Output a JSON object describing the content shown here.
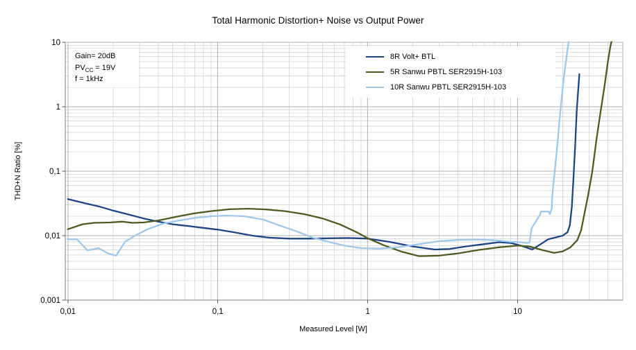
{
  "chart_data": {
    "type": "line",
    "title": "Total Harmonic Distortion+ Noise vs Output Power",
    "xlabel": "Measured Level [W]",
    "ylabel": "THD+N Ratio [%]",
    "x_scale": "log",
    "y_scale": "log",
    "xlim": [
      0.01,
      50
    ],
    "ylim": [
      0.001,
      10
    ],
    "grid": "major+minor",
    "legend_position": "top-center-inside",
    "x_ticks": [
      {
        "v": 0.01,
        "label": "0,01"
      },
      {
        "v": 0.1,
        "label": "0,1"
      },
      {
        "v": 1,
        "label": "1"
      },
      {
        "v": 10,
        "label": "10"
      }
    ],
    "y_ticks": [
      {
        "v": 10,
        "label": "10"
      },
      {
        "v": 1,
        "label": "1"
      },
      {
        "v": 0.1,
        "label": "0,1"
      },
      {
        "v": 0.01,
        "label": "0,01"
      },
      {
        "v": 0.001,
        "label": "0,001"
      }
    ],
    "annotation": {
      "line1": "Gain= 20dB",
      "line2_pre": "PV",
      "line2_sub": "CC",
      "line2_post": " = 19V",
      "line3": "f = 1kHz"
    },
    "colors": {
      "grid_major": "#b2b2b2",
      "grid_minor": "#dcdcdc",
      "axis_line": "#808080",
      "tick": "#555555",
      "text": "#000000"
    },
    "series": [
      {
        "name": "8R Volt+ BTL",
        "color": "#1c4587",
        "points": [
          [
            0.01,
            0.037
          ],
          [
            0.0125,
            0.0325
          ],
          [
            0.016,
            0.0285
          ],
          [
            0.02,
            0.0245
          ],
          [
            0.025,
            0.0215
          ],
          [
            0.032,
            0.0185
          ],
          [
            0.04,
            0.0165
          ],
          [
            0.05,
            0.015
          ],
          [
            0.065,
            0.014
          ],
          [
            0.08,
            0.0132
          ],
          [
            0.1,
            0.0124
          ],
          [
            0.13,
            0.0112
          ],
          [
            0.17,
            0.01
          ],
          [
            0.22,
            0.0093
          ],
          [
            0.3,
            0.009
          ],
          [
            0.4,
            0.009
          ],
          [
            0.55,
            0.0091
          ],
          [
            0.75,
            0.0092
          ],
          [
            1,
            0.009
          ],
          [
            1.4,
            0.008
          ],
          [
            2,
            0.0068
          ],
          [
            2.8,
            0.0061
          ],
          [
            3.5,
            0.0062
          ],
          [
            4.5,
            0.0068
          ],
          [
            6,
            0.0074
          ],
          [
            7.5,
            0.0079
          ],
          [
            9,
            0.0077
          ],
          [
            10.5,
            0.007
          ],
          [
            12.5,
            0.0061
          ],
          [
            14,
            0.0072
          ],
          [
            16,
            0.0088
          ],
          [
            18,
            0.0094
          ],
          [
            20,
            0.01
          ],
          [
            21.5,
            0.0113
          ],
          [
            22.3,
            0.0145
          ],
          [
            23,
            0.028
          ],
          [
            23.6,
            0.08
          ],
          [
            24.2,
            0.25
          ],
          [
            24.8,
            0.9
          ],
          [
            25.4,
            1.9
          ],
          [
            25.8,
            3.2
          ]
        ]
      },
      {
        "name": "5R Sanwu PBTL SER2915H-103",
        "color": "#4f5a20",
        "points": [
          [
            0.01,
            0.0126
          ],
          [
            0.0125,
            0.015
          ],
          [
            0.015,
            0.0158
          ],
          [
            0.019,
            0.016
          ],
          [
            0.023,
            0.0165
          ],
          [
            0.027,
            0.0158
          ],
          [
            0.032,
            0.016
          ],
          [
            0.04,
            0.0172
          ],
          [
            0.055,
            0.02
          ],
          [
            0.07,
            0.0222
          ],
          [
            0.09,
            0.024
          ],
          [
            0.12,
            0.0257
          ],
          [
            0.16,
            0.0262
          ],
          [
            0.21,
            0.0255
          ],
          [
            0.28,
            0.024
          ],
          [
            0.38,
            0.0215
          ],
          [
            0.5,
            0.0185
          ],
          [
            0.65,
            0.015
          ],
          [
            0.85,
            0.0112
          ],
          [
            1,
            0.0091
          ],
          [
            1.3,
            0.007
          ],
          [
            1.7,
            0.0056
          ],
          [
            2.2,
            0.0048
          ],
          [
            3,
            0.0049
          ],
          [
            4,
            0.0053
          ],
          [
            5.5,
            0.006
          ],
          [
            7.5,
            0.0066
          ],
          [
            10,
            0.007
          ],
          [
            12,
            0.0068
          ],
          [
            14.5,
            0.006
          ],
          [
            17.5,
            0.0054
          ],
          [
            20,
            0.0057
          ],
          [
            22.5,
            0.0066
          ],
          [
            25,
            0.0085
          ],
          [
            26.5,
            0.012
          ],
          [
            28,
            0.023
          ],
          [
            29.5,
            0.042
          ],
          [
            31.5,
            0.1
          ],
          [
            33.5,
            0.3
          ],
          [
            35.5,
            0.75
          ],
          [
            37,
            1.4
          ],
          [
            38.5,
            2.6
          ],
          [
            40,
            5
          ],
          [
            41.5,
            8.5
          ],
          [
            42.5,
            11
          ]
        ]
      },
      {
        "name": "10R Sanwu PBTL SER2915H-103",
        "color": "#9dc8ec",
        "points": [
          [
            0.01,
            0.0088
          ],
          [
            0.0115,
            0.0088
          ],
          [
            0.0135,
            0.0059
          ],
          [
            0.016,
            0.0064
          ],
          [
            0.0185,
            0.0053
          ],
          [
            0.021,
            0.0049
          ],
          [
            0.024,
            0.008
          ],
          [
            0.028,
            0.01
          ],
          [
            0.034,
            0.0126
          ],
          [
            0.043,
            0.0153
          ],
          [
            0.055,
            0.0172
          ],
          [
            0.07,
            0.0188
          ],
          [
            0.09,
            0.02
          ],
          [
            0.115,
            0.0205
          ],
          [
            0.15,
            0.02
          ],
          [
            0.2,
            0.0178
          ],
          [
            0.26,
            0.0143
          ],
          [
            0.33,
            0.0118
          ],
          [
            0.42,
            0.0095
          ],
          [
            0.55,
            0.008
          ],
          [
            0.7,
            0.007
          ],
          [
            0.9,
            0.0064
          ],
          [
            1.2,
            0.0063
          ],
          [
            1.6,
            0.0066
          ],
          [
            2.2,
            0.0074
          ],
          [
            3,
            0.0082
          ],
          [
            4,
            0.0086
          ],
          [
            5.5,
            0.0087
          ],
          [
            7,
            0.0085
          ],
          [
            9,
            0.008
          ],
          [
            10.5,
            0.0079
          ],
          [
            11.5,
            0.0077
          ],
          [
            12,
            0.0078
          ],
          [
            12.4,
            0.013
          ],
          [
            13.5,
            0.018
          ],
          [
            14.1,
            0.021
          ],
          [
            14.3,
            0.0237
          ],
          [
            15.5,
            0.0237
          ],
          [
            16.2,
            0.0235
          ],
          [
            16.4,
            0.0215
          ],
          [
            16.6,
            0.0235
          ],
          [
            16.9,
            0.026
          ],
          [
            17,
            0.04
          ],
          [
            17.6,
            0.09
          ],
          [
            18.4,
            0.25
          ],
          [
            19,
            0.6
          ],
          [
            19.5,
            1.1
          ],
          [
            20.3,
            2.8
          ],
          [
            21.2,
            6
          ],
          [
            22,
            11
          ]
        ]
      }
    ]
  }
}
